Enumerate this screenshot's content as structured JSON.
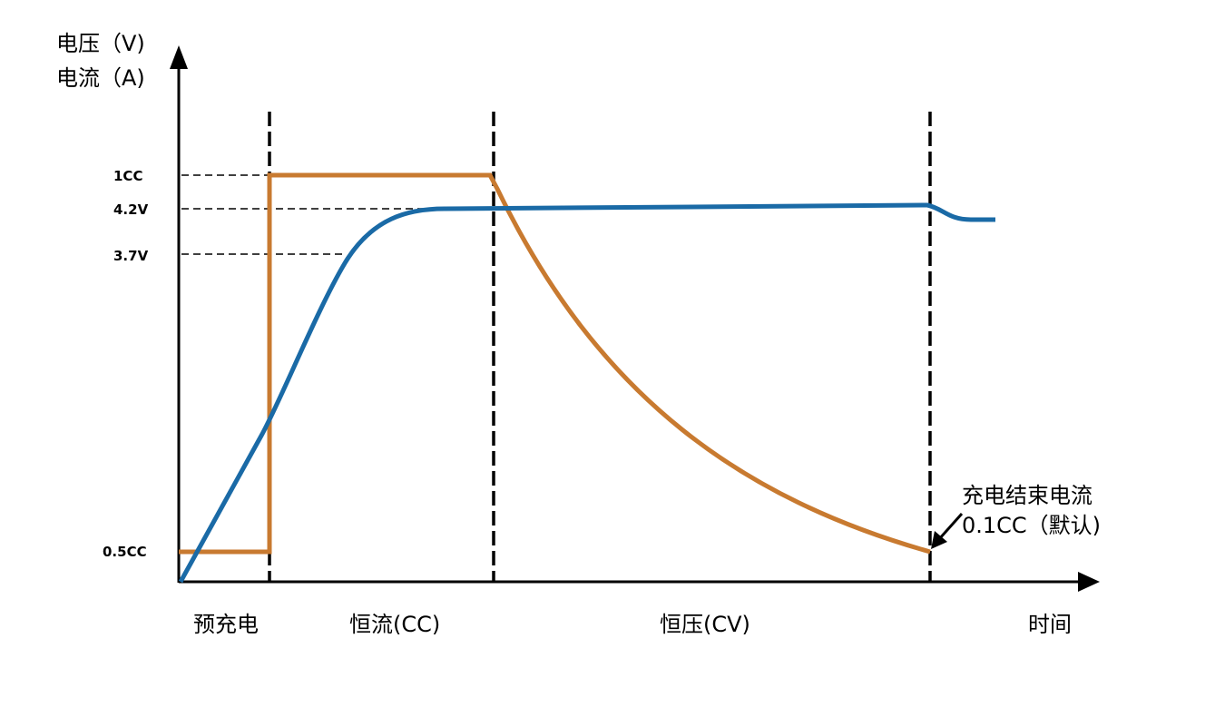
{
  "axes": {
    "y_label_line1": "电压（V)",
    "y_label_line2": "电流（A)",
    "x_label": "时间"
  },
  "ticks": {
    "cc1": "1CC",
    "v42": "4.2V",
    "v37": "3.7V",
    "cc05": "0.5CC"
  },
  "phases": {
    "precharge": "预充电",
    "cc": "恒流(CC)",
    "cv": "恒压(CV)"
  },
  "annotation": {
    "line1": "充电结束电流",
    "line2": "0.1CC（默认)"
  },
  "colors": {
    "current": "#C87A30",
    "voltage": "#1A6AA6",
    "axis": "#000000"
  }
}
